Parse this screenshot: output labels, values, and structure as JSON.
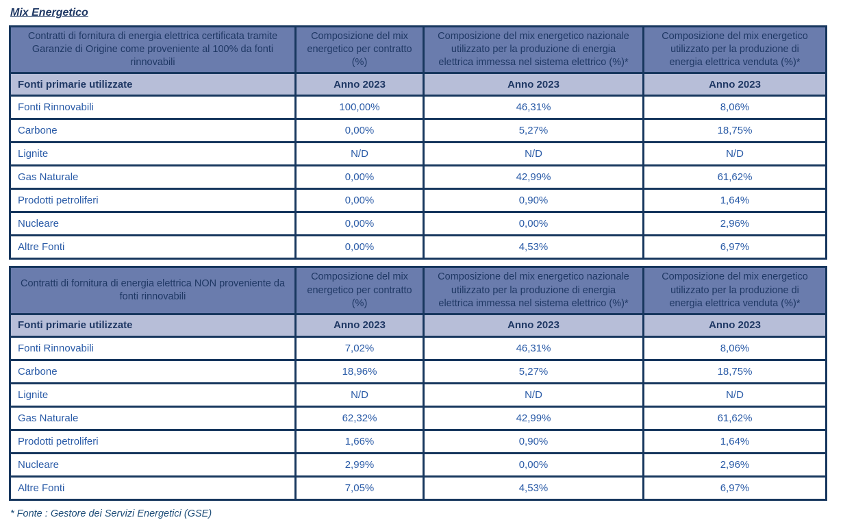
{
  "page": {
    "title": "Mix Energetico",
    "footnote": "* Fonte : Gestore dei Servizi Energetici (GSE)"
  },
  "colors": {
    "header_bg": "#6A7CAD",
    "subheader_bg": "#B7BED8",
    "border": "#17375E",
    "header_text": "#1F3864",
    "data_text": "#2A5BA7",
    "footnote_text": "#1F4E79"
  },
  "tables": [
    {
      "contract_header": "Contratti di fornitura di energia elettrica certificata tramite Garanzie di Origine come proveniente al 100% da fonti rinnovabili",
      "column_headers": [
        "Composizione del mix energetico per contratto (%)",
        "Composizione del mix energetico nazionale utilizzato per la produzione di energia elettrica immessa nel sistema elettrico (%)*",
        "Composizione del mix energetico utilizzato per la produzione di energia elettrica venduta (%)*"
      ],
      "subheader": {
        "label": "Fonti primarie utilizzate",
        "year": "Anno 2023"
      },
      "rows": [
        {
          "label": "Fonti Rinnovabili",
          "values": [
            "100,00%",
            "46,31%",
            "8,06%"
          ]
        },
        {
          "label": "Carbone",
          "values": [
            "0,00%",
            "5,27%",
            "18,75%"
          ]
        },
        {
          "label": "Lignite",
          "values": [
            "N/D",
            "N/D",
            "N/D"
          ]
        },
        {
          "label": "Gas Naturale",
          "values": [
            "0,00%",
            "42,99%",
            "61,62%"
          ]
        },
        {
          "label": "Prodotti petroliferi",
          "values": [
            "0,00%",
            "0,90%",
            "1,64%"
          ]
        },
        {
          "label": "Nucleare",
          "values": [
            "0,00%",
            "0,00%",
            "2,96%"
          ]
        },
        {
          "label": "Altre Fonti",
          "values": [
            "0,00%",
            "4,53%",
            "6,97%"
          ]
        }
      ]
    },
    {
      "contract_header": "Contratti di fornitura di energia elettrica NON proveniente da fonti rinnovabili",
      "column_headers": [
        "Composizione del mix energetico per contratto (%)",
        "Composizione del mix energetico nazionale utilizzato per la produzione di energia elettrica immessa nel sistema elettrico (%)*",
        "Composizione del mix energetico utilizzato per la produzione di energia elettrica venduta (%)*"
      ],
      "subheader": {
        "label": "Fonti primarie utilizzate",
        "year": "Anno 2023"
      },
      "rows": [
        {
          "label": "Fonti Rinnovabili",
          "values": [
            "7,02%",
            "46,31%",
            "8,06%"
          ]
        },
        {
          "label": "Carbone",
          "values": [
            "18,96%",
            "5,27%",
            "18,75%"
          ]
        },
        {
          "label": "Lignite",
          "values": [
            "N/D",
            "N/D",
            "N/D"
          ]
        },
        {
          "label": "Gas Naturale",
          "values": [
            "62,32%",
            "42,99%",
            "61,62%"
          ]
        },
        {
          "label": "Prodotti petroliferi",
          "values": [
            "1,66%",
            "0,90%",
            "1,64%"
          ]
        },
        {
          "label": "Nucleare",
          "values": [
            "2,99%",
            "0,00%",
            "2,96%"
          ]
        },
        {
          "label": "Altre Fonti",
          "values": [
            "7,05%",
            "4,53%",
            "6,97%"
          ]
        }
      ]
    }
  ]
}
